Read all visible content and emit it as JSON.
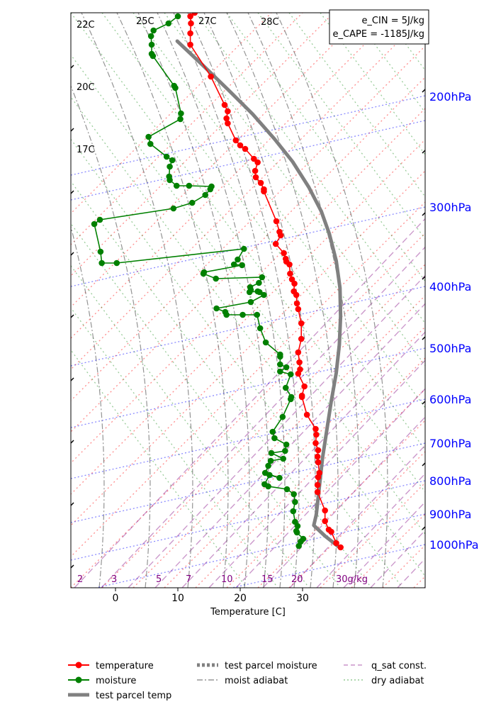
{
  "chart_data": {
    "type": "line",
    "title": "",
    "xlabel": "Temperature [C]",
    "x_ticks": [
      0,
      10,
      20,
      30
    ],
    "xlim": [
      -7.5,
      49.5
    ],
    "pressure_labels": [
      "200hPa",
      "300hPa",
      "400hPa",
      "500hPa",
      "600hPa",
      "700hPa",
      "800hPa",
      "900hPa",
      "1000hPa"
    ],
    "theta_labels": [
      "22C",
      "20C",
      "17C",
      "25C",
      "27C",
      "28C"
    ],
    "qsat_labels": [
      "2",
      "3",
      "5",
      "7",
      "10",
      "15",
      "20",
      "30g/kg"
    ],
    "energy_box": {
      "cin": "e_CIN = 5J/kg",
      "cape": "e_CAPE = -1185J/kg"
    },
    "legend": {
      "temperature": "temperature",
      "moisture": "moisture",
      "parcel_temp": "test parcel temp",
      "parcel_moisture": "test parcel moisture",
      "moist_adiabat": "moist adiabat",
      "qsat": "q_sat const.",
      "dry_adiabat": "dry adiabat"
    },
    "colors": {
      "temperature": "#ff0000",
      "moisture": "#008000",
      "parcel": "#808080",
      "isobar": "#0000ff",
      "qsat": "#800080",
      "dry_adiabat": "#008000",
      "isotherm": "#ff0000"
    },
    "series": [
      {
        "name": "temperature",
        "points": [
          [
            12.7,
            18
          ],
          [
            12,
            23
          ],
          [
            12.1,
            33
          ],
          [
            12,
            47
          ],
          [
            12,
            63
          ],
          [
            15.3,
            108
          ],
          [
            17.5,
            148
          ],
          [
            18,
            157
          ],
          [
            17.8,
            167
          ],
          [
            18,
            174
          ],
          [
            19.3,
            198
          ],
          [
            20,
            205
          ],
          [
            20.8,
            210
          ],
          [
            22.2,
            224
          ],
          [
            22.8,
            229
          ],
          [
            22.4,
            241
          ],
          [
            22.5,
            250
          ],
          [
            23.3,
            258
          ],
          [
            23.8,
            267
          ],
          [
            23.8,
            270
          ],
          [
            25.8,
            312
          ],
          [
            26.3,
            327
          ],
          [
            26.5,
            332
          ],
          [
            25.7,
            344
          ],
          [
            27,
            357
          ],
          [
            27.3,
            365
          ],
          [
            27.4,
            369
          ],
          [
            27.9,
            373
          ],
          [
            28,
            386
          ],
          [
            28.3,
            394
          ],
          [
            28.7,
            400
          ],
          [
            28.6,
            411
          ],
          [
            29,
            416
          ],
          [
            29.1,
            428
          ],
          [
            29.3,
            436
          ],
          [
            29.8,
            456
          ],
          [
            29.8,
            478
          ],
          [
            29.3,
            497
          ],
          [
            29.5,
            511
          ],
          [
            29.6,
            521
          ],
          [
            29.3,
            527
          ],
          [
            30.3,
            545
          ],
          [
            29.9,
            558
          ],
          [
            29.9,
            560
          ],
          [
            30.7,
            585
          ],
          [
            32.1,
            605
          ],
          [
            32.2,
            613
          ],
          [
            32.1,
            625
          ],
          [
            32.5,
            635
          ],
          [
            32.4,
            644
          ],
          [
            32.5,
            652
          ],
          [
            32.7,
            667
          ],
          [
            32.5,
            673
          ],
          [
            32.4,
            684
          ],
          [
            32.4,
            694
          ],
          [
            33.6,
            720
          ],
          [
            33.6,
            735
          ],
          [
            34.2,
            747
          ],
          [
            34.6,
            750
          ],
          [
            35.4,
            766
          ],
          [
            36.1,
            772
          ]
        ]
      },
      {
        "name": "moisture",
        "points": [
          [
            10,
            23
          ],
          [
            8.5,
            33
          ],
          [
            6.1,
            43
          ],
          [
            5.7,
            51
          ],
          [
            5.8,
            63
          ],
          [
            5.8,
            76
          ],
          [
            6,
            79
          ],
          [
            9.4,
            121
          ],
          [
            9.6,
            124
          ],
          [
            10.5,
            160
          ],
          [
            10.4,
            168
          ],
          [
            5.3,
            193
          ],
          [
            5.6,
            203
          ],
          [
            8.2,
            221
          ],
          [
            9.1,
            226
          ],
          [
            8.7,
            235
          ],
          [
            8.6,
            249
          ],
          [
            8.7,
            254
          ],
          [
            9.8,
            262
          ],
          [
            11.8,
            262
          ],
          [
            15.4,
            263
          ],
          [
            15.2,
            267
          ],
          [
            14.4,
            275
          ],
          [
            12.3,
            286
          ],
          [
            9.3,
            294
          ],
          [
            -2.5,
            310
          ],
          [
            -3.4,
            316
          ],
          [
            -2.4,
            355
          ],
          [
            -2.2,
            371
          ],
          [
            0.2,
            371
          ],
          [
            20.6,
            351
          ],
          [
            19.6,
            366
          ],
          [
            19,
            373
          ],
          [
            20.3,
            374
          ],
          [
            14.2,
            384
          ],
          [
            14.1,
            386
          ],
          [
            16.1,
            393
          ],
          [
            23.5,
            391
          ],
          [
            23,
            399
          ],
          [
            21.6,
            405
          ],
          [
            21.7,
            409
          ],
          [
            21.5,
            412
          ],
          [
            22.8,
            411
          ],
          [
            23.1,
            412
          ],
          [
            23.8,
            416
          ],
          [
            21.7,
            426
          ],
          [
            16.2,
            435
          ],
          [
            17.6,
            440
          ],
          [
            17.8,
            444
          ],
          [
            20.4,
            444
          ],
          [
            22.7,
            444
          ],
          [
            23.2,
            463
          ],
          [
            24.1,
            483
          ],
          [
            26.4,
            500
          ],
          [
            26.4,
            503
          ],
          [
            26.4,
            514
          ],
          [
            27.4,
            518
          ],
          [
            26.4,
            524
          ],
          [
            28.1,
            528
          ],
          [
            27.3,
            547
          ],
          [
            28.2,
            560
          ],
          [
            28.1,
            563
          ],
          [
            26.8,
            588
          ],
          [
            25.2,
            609
          ],
          [
            25.5,
            618
          ],
          [
            27.4,
            627
          ],
          [
            27.2,
            636
          ],
          [
            25,
            639
          ],
          [
            26.9,
            647
          ],
          [
            24.9,
            650
          ],
          [
            24.5,
            657
          ],
          [
            24,
            667
          ],
          [
            26.3,
            674
          ],
          [
            24.7,
            670
          ],
          [
            23.9,
            683
          ],
          [
            24.5,
            686
          ],
          [
            27.5,
            690
          ],
          [
            28.6,
            697
          ],
          [
            28.8,
            708
          ],
          [
            28.5,
            721
          ],
          [
            28.8,
            736
          ],
          [
            29.2,
            742
          ],
          [
            29,
            749
          ],
          [
            29.1,
            751
          ],
          [
            30.1,
            760
          ],
          [
            29.7,
            764
          ],
          [
            29.4,
            770
          ]
        ]
      },
      {
        "name": "test parcel temp",
        "points": [
          [
            9.9,
            58
          ],
          [
            14,
            92
          ],
          [
            18,
            126
          ],
          [
            22,
            161
          ],
          [
            25.5,
            196
          ],
          [
            28.4,
            228
          ],
          [
            31,
            264
          ],
          [
            33,
            298
          ],
          [
            34.3,
            330
          ],
          [
            35.4,
            368
          ],
          [
            36,
            406
          ],
          [
            36.1,
            446
          ],
          [
            35.9,
            486
          ],
          [
            35.4,
            526
          ],
          [
            34.6,
            566
          ],
          [
            33.9,
            606
          ],
          [
            33.2,
            646
          ],
          [
            32.7,
            686
          ],
          [
            32.2,
            726
          ],
          [
            31.8,
            741
          ],
          [
            33.6,
            756
          ],
          [
            35.9,
            772
          ]
        ]
      }
    ]
  }
}
